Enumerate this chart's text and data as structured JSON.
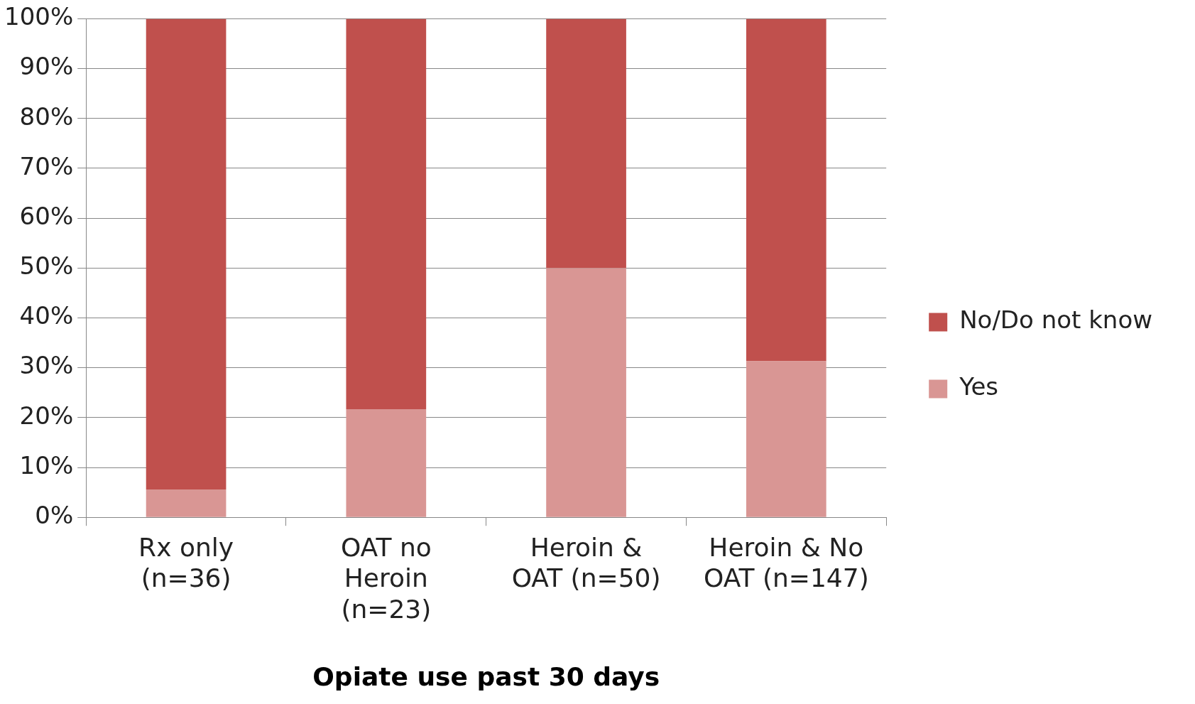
{
  "chart_data": {
    "type": "bar",
    "stacked": true,
    "xlabel": "Opiate use past 30 days",
    "categories": [
      "Rx only (n=36)",
      "OAT no Heroin (n=23)",
      "Heroin & OAT (n=50)",
      "Heroin & No OAT (n=147)"
    ],
    "series": [
      {
        "name": "Yes",
        "color": "#d99694",
        "values": [
          5.6,
          21.7,
          50,
          31.3
        ]
      },
      {
        "name": "No/Do not know",
        "color": "#c0504d",
        "values": [
          94.4,
          78.3,
          50,
          68.7
        ]
      }
    ],
    "ylim": [
      0,
      100
    ],
    "yticks": [
      {
        "value": 0,
        "label": "0%"
      },
      {
        "value": 10,
        "label": "10%"
      },
      {
        "value": 20,
        "label": "20%"
      },
      {
        "value": 30,
        "label": "30%"
      },
      {
        "value": 40,
        "label": "40%"
      },
      {
        "value": 50,
        "label": "50%"
      },
      {
        "value": 60,
        "label": "60%"
      },
      {
        "value": 70,
        "label": "70%"
      },
      {
        "value": 80,
        "label": "80%"
      },
      {
        "value": 90,
        "label": "90%"
      },
      {
        "value": 100,
        "label": "100%"
      }
    ],
    "grid": "y",
    "legend": "right"
  }
}
